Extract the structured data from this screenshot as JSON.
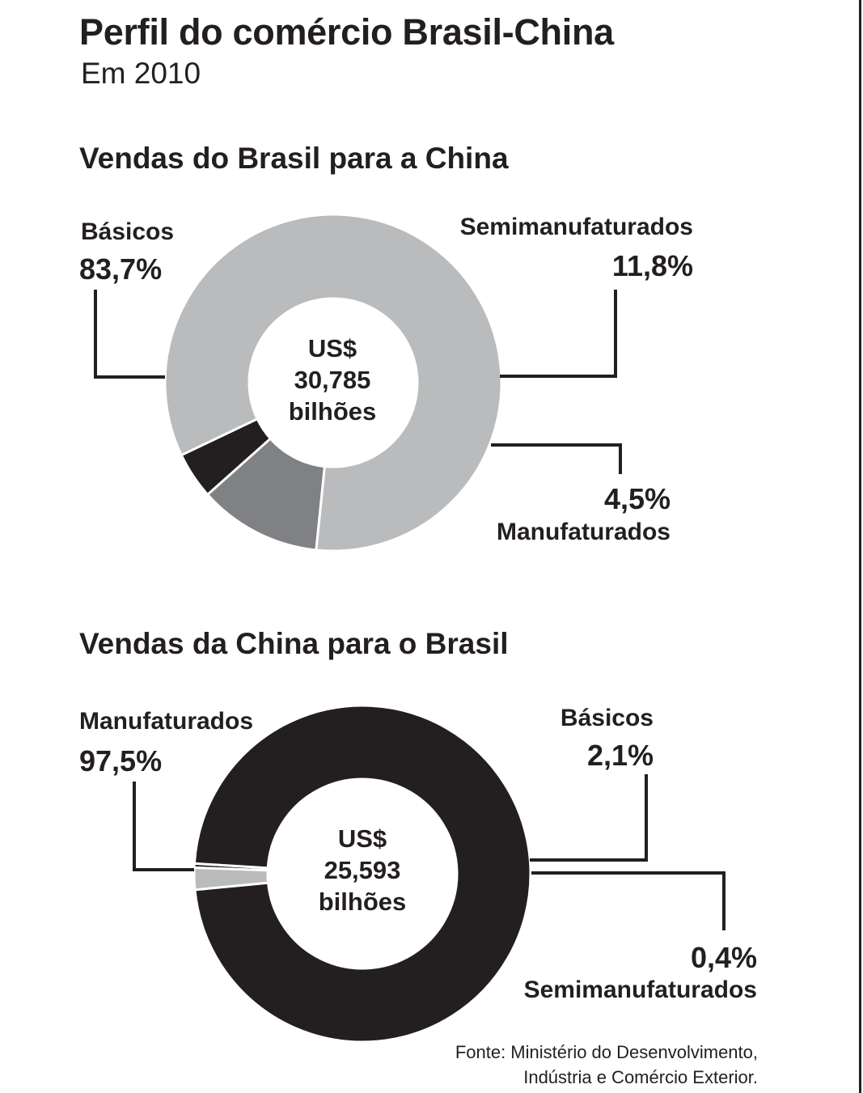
{
  "header": {
    "title": "Perfil do comércio Brasil-China",
    "subtitle": "Em 2010"
  },
  "source": {
    "line1": "Fonte: Ministério do Desenvolvimento,",
    "line2": "Indústria e Comércio Exterior."
  },
  "colors": {
    "basicos_light": "#b9bbbd",
    "semimanufaturados_mid": "#808184",
    "manufaturados_dark": "#231f20",
    "text": "#231f20"
  },
  "chart_data": [
    {
      "type": "pie",
      "title": "Vendas do Brasil para a China",
      "total": {
        "line1": "US$",
        "line2": "30,785",
        "line3": "bilhões"
      },
      "slices": [
        {
          "label": "Básicos",
          "value": 83.7,
          "value_text": "83,7%",
          "color": "#b9bbbd"
        },
        {
          "label": "Semimanufaturados",
          "value": 11.8,
          "value_text": "11,8%",
          "color": "#808184"
        },
        {
          "label": "Manufaturados",
          "value": 4.5,
          "value_text": "4,5%",
          "color": "#231f20"
        }
      ]
    },
    {
      "type": "pie",
      "title": "Vendas da China para o Brasil",
      "total": {
        "line1": "US$",
        "line2": "25,593",
        "line3": "bilhões"
      },
      "slices": [
        {
          "label": "Manufaturados",
          "value": 97.5,
          "value_text": "97,5%",
          "color": "#231f20"
        },
        {
          "label": "Básicos",
          "value": 2.1,
          "value_text": "2,1%",
          "color": "#b9bbbd"
        },
        {
          "label": "Semimanufaturados",
          "value": 0.4,
          "value_text": "0,4%",
          "color": "#231f20"
        }
      ]
    }
  ]
}
